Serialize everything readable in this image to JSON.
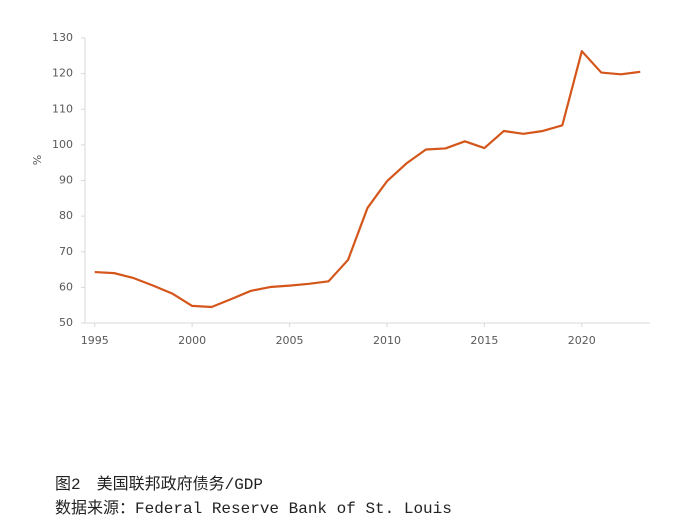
{
  "chart_data": {
    "type": "line",
    "y_label": "%",
    "x": [
      1995,
      1996,
      1997,
      1998,
      1999,
      2000,
      2001,
      2002,
      2003,
      2004,
      2005,
      2006,
      2007,
      2008,
      2009,
      2010,
      2011,
      2012,
      2013,
      2014,
      2015,
      2016,
      2017,
      2018,
      2019,
      2020,
      2021,
      2022,
      2023
    ],
    "series": [
      {
        "color": "#d4561b",
        "values": [
          64.3,
          64.0,
          62.6,
          60.5,
          58.2,
          54.8,
          54.5,
          56.7,
          59.0,
          60.1,
          60.5,
          61.0,
          61.7,
          67.7,
          82.3,
          89.8,
          94.8,
          98.7,
          99.0,
          101.0,
          99.1,
          103.9,
          103.1,
          103.9,
          105.5,
          126.3,
          120.3,
          119.8,
          120.5
        ]
      }
    ],
    "xlim": [
      1994.5,
      2023.5
    ],
    "xticks": [
      1995,
      2000,
      2005,
      2010,
      2015,
      2020
    ],
    "ylim": [
      50,
      130
    ],
    "yticks": [
      50,
      60,
      70,
      80,
      90,
      100,
      110,
      120,
      130
    ],
    "grid": false
  },
  "caption": "图2　美国联邦政府债务/GDP",
  "source": "数据来源：Federal Reserve Bank of St. Louis"
}
